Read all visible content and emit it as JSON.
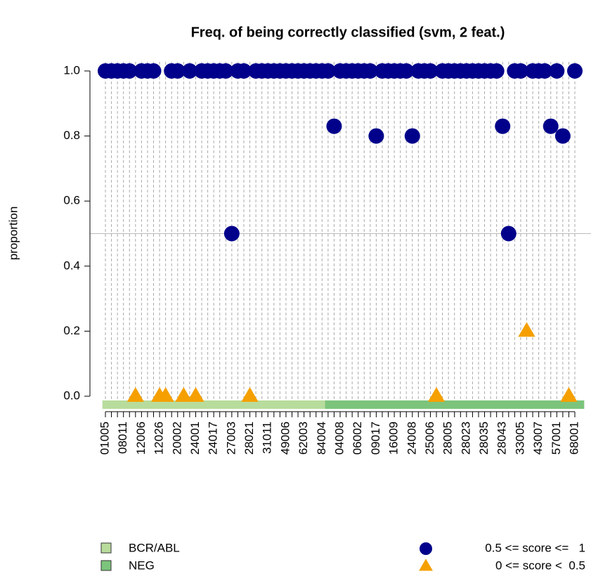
{
  "chart_data": {
    "type": "dotplot",
    "title": "Freq. of being correctly classified (svm, 2 feat.)",
    "y_label": "proportion",
    "categories": [
      "01005",
      null,
      null,
      "08011",
      null,
      null,
      "12006",
      null,
      null,
      "12026",
      null,
      null,
      "20002",
      null,
      null,
      "24001",
      null,
      null,
      "24017",
      null,
      null,
      "27003",
      null,
      null,
      "28021",
      null,
      null,
      "31011",
      null,
      null,
      "49006",
      null,
      null,
      "62003",
      null,
      null,
      "84004",
      null,
      null,
      "04008",
      null,
      null,
      "06002",
      null,
      null,
      "09017",
      null,
      null,
      "16009",
      null,
      null,
      "24008",
      null,
      null,
      "25006",
      null,
      null,
      "28005",
      null,
      null,
      "28023",
      null,
      null,
      "28035",
      null,
      null,
      "28043",
      null,
      null,
      "33005",
      null,
      null,
      "43007",
      null,
      null,
      "57001",
      null,
      null,
      "68001"
    ],
    "values": [
      1,
      1,
      1,
      1,
      1,
      0,
      1,
      1,
      1,
      0,
      0,
      1,
      1,
      0,
      1,
      0,
      1,
      1,
      1,
      1,
      1,
      0.5,
      1,
      1,
      0,
      1,
      1,
      1,
      1,
      1,
      1,
      1,
      1,
      1,
      1,
      1,
      1,
      1,
      0.83,
      1,
      1,
      1,
      1,
      1,
      1,
      0.8,
      1,
      1,
      1,
      1,
      1,
      0.8,
      1,
      1,
      1,
      0,
      1,
      1,
      1,
      1,
      1,
      1,
      1,
      1,
      1,
      1,
      0.83,
      0.5,
      1,
      1,
      0.2,
      1,
      1,
      1,
      0.83,
      1,
      0.8,
      0,
      1
    ],
    "groups": [
      "BCR/ABL",
      "BCR/ABL",
      "BCR/ABL",
      "BCR/ABL",
      "BCR/ABL",
      "BCR/ABL",
      "BCR/ABL",
      "BCR/ABL",
      "BCR/ABL",
      "BCR/ABL",
      "BCR/ABL",
      "BCR/ABL",
      "BCR/ABL",
      "BCR/ABL",
      "BCR/ABL",
      "BCR/ABL",
      "BCR/ABL",
      "BCR/ABL",
      "BCR/ABL",
      "BCR/ABL",
      "BCR/ABL",
      "BCR/ABL",
      "BCR/ABL",
      "BCR/ABL",
      "BCR/ABL",
      "BCR/ABL",
      "BCR/ABL",
      "BCR/ABL",
      "BCR/ABL",
      "BCR/ABL",
      "BCR/ABL",
      "BCR/ABL",
      "BCR/ABL",
      "BCR/ABL",
      "BCR/ABL",
      "BCR/ABL",
      "BCR/ABL",
      "NEG",
      "NEG",
      "NEG",
      "NEG",
      "NEG",
      "NEG",
      "NEG",
      "NEG",
      "NEG",
      "NEG",
      "NEG",
      "NEG",
      "NEG",
      "NEG",
      "NEG",
      "NEG",
      "NEG",
      "NEG",
      "NEG",
      "NEG",
      "NEG",
      "NEG",
      "NEG",
      "NEG",
      "NEG",
      "NEG",
      "NEG",
      "NEG",
      "NEG",
      "NEG",
      "NEG",
      "NEG",
      "NEG",
      "NEG",
      "NEG",
      "NEG",
      "NEG",
      "NEG",
      "NEG",
      "NEG",
      "NEG",
      "NEG",
      "NEG"
    ],
    "group_legend": [
      {
        "name": "BCR/ABL",
        "color": "#b8dc9c"
      },
      {
        "name": "NEG",
        "color": "#7cc47c"
      }
    ],
    "threshold": 0.5,
    "point_styles": [
      {
        "label": "0.5 <= score <=   1",
        "color": "#00008b",
        "shape": "circle"
      },
      {
        "label": "0 <= score <  0.5",
        "color": "#f5a000",
        "shape": "triangle"
      }
    ],
    "hline": 0.5,
    "ylim": [
      0,
      1
    ],
    "yticks": [
      {
        "value": 0,
        "label": "0.0"
      },
      {
        "value": 0.2,
        "label": "0.2"
      },
      {
        "value": 0.4,
        "label": "0.4"
      },
      {
        "value": 0.6,
        "label": "0.6"
      },
      {
        "value": 0.8,
        "label": "0.8"
      },
      {
        "value": 1,
        "label": "1.0"
      }
    ]
  }
}
